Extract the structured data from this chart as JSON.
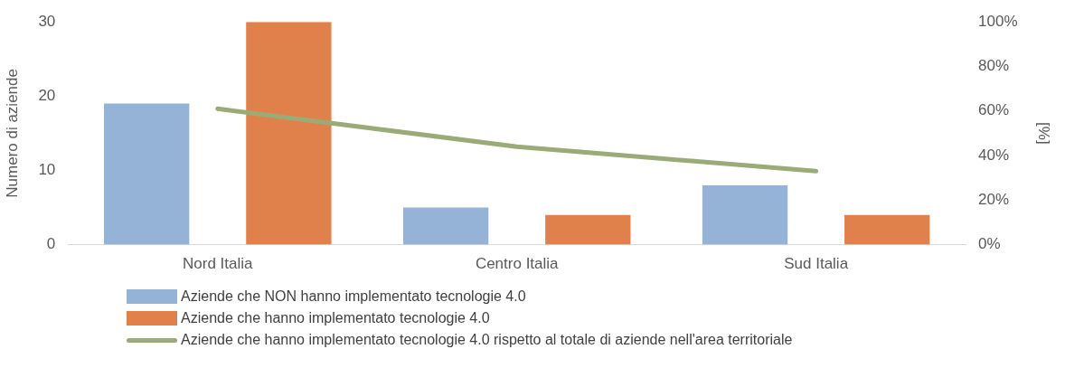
{
  "chart_data": {
    "type": "bar",
    "categories": [
      "Nord Italia",
      "Centro Italia",
      "Sud Italia"
    ],
    "ylabel": "Numero di aziende",
    "y2label": "[%]",
    "ylim": [
      0,
      30
    ],
    "yticks": [
      0,
      10,
      20,
      30
    ],
    "y2lim": [
      0,
      100
    ],
    "y2ticks": [
      {
        "value": 0,
        "label": "0%"
      },
      {
        "value": 20,
        "label": "20%"
      },
      {
        "value": 40,
        "label": "40%"
      },
      {
        "value": 60,
        "label": "60%"
      },
      {
        "value": 80,
        "label": "80%"
      },
      {
        "value": 100,
        "label": "100%"
      }
    ],
    "series": [
      {
        "name": "Aziende che NON hanno implementato tecnologie 4.0",
        "color": "#95b3d7",
        "values": [
          19,
          5,
          8
        ]
      },
      {
        "name": "Aziende che hanno implementato tecnologie 4.0",
        "color": "#e0804a",
        "values": [
          30,
          4,
          4
        ]
      },
      {
        "name": "Aziende che hanno implementato tecnologie 4.0 rispetto al totale di aziende nell'area territoriale",
        "type": "line",
        "axis": "y2",
        "color": "#9bab78",
        "values": [
          61,
          44,
          33
        ]
      }
    ],
    "grid": false,
    "legend": "bottom",
    "marker": "none"
  }
}
